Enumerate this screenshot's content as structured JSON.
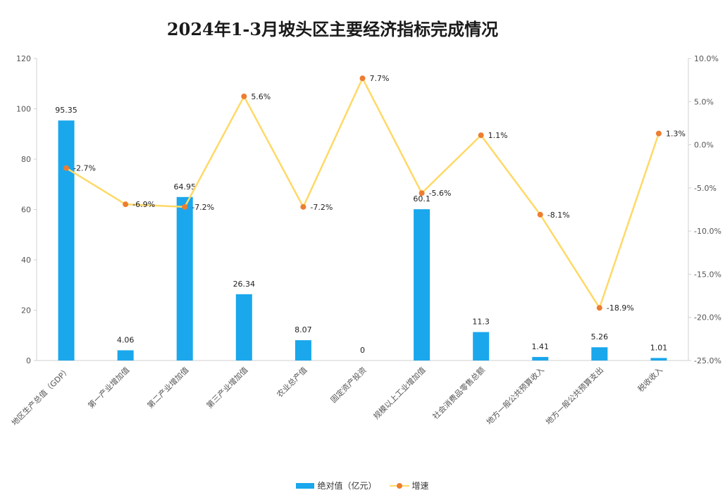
{
  "chart_data": {
    "type": "bar+line",
    "title": "2024年1-3月坡头区主要经济指标完成情况",
    "categories": [
      "地区生产总值（GDP）",
      "第一产业增加值",
      "第二产业增加值",
      "第三产业增加值",
      "农业总产值",
      "固定资产投资",
      "规模以上工业增加值",
      "社会消费品零售总额",
      "地方一般公共预算收入",
      "地方一般公共预算支出",
      "税收收入"
    ],
    "series": [
      {
        "name": "绝对值（亿元）",
        "type": "bar",
        "axis": "left",
        "color": "#1AA7EC",
        "values": [
          95.35,
          4.06,
          64.95,
          26.34,
          8.07,
          0,
          60.1,
          11.3,
          1.41,
          5.26,
          1.01
        ],
        "labels": [
          "95.35",
          "4.06",
          "64.95",
          "26.34",
          "8.07",
          "0",
          "60.1",
          "11.3",
          "1.41",
          "5.26",
          "1.01"
        ]
      },
      {
        "name": "增速",
        "type": "line",
        "axis": "right",
        "color": "#FFD966",
        "marker_color": "#ED7D31",
        "values": [
          -2.7,
          -6.9,
          -7.2,
          5.6,
          -7.2,
          7.7,
          -5.6,
          1.1,
          -8.1,
          -18.9,
          1.3
        ],
        "labels": [
          "-2.7%",
          "-6.9%",
          "-7.2%",
          "5.6%",
          "-7.2%",
          "7.7%",
          "-5.6%",
          "1.1%",
          "-8.1%",
          "-18.9%",
          "1.3%"
        ]
      }
    ],
    "y_left": {
      "min": 0,
      "max": 120,
      "ticks": [
        0,
        20,
        40,
        60,
        80,
        100,
        120
      ],
      "tick_labels": [
        "0",
        "20",
        "40",
        "60",
        "80",
        "100",
        "120"
      ]
    },
    "y_right": {
      "min": -25,
      "max": 10,
      "ticks": [
        -25,
        -20,
        -15,
        -10,
        -5,
        0,
        5,
        10
      ],
      "tick_labels": [
        "-25.0%",
        "-20.0%",
        "-15.0%",
        "-10.0%",
        "-5.0%",
        "0.0%",
        "5.0%",
        "10.0%"
      ]
    },
    "grid": false,
    "legend": {
      "position": "bottom",
      "items": [
        "绝对值（亿元）",
        "增速"
      ]
    }
  }
}
